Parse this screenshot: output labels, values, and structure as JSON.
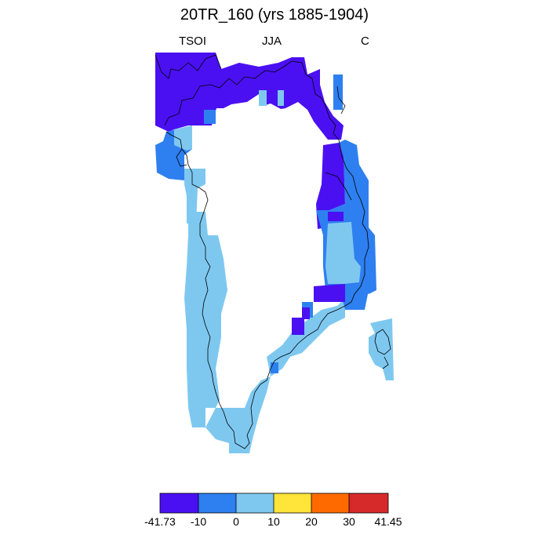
{
  "title": "20TR_160 (yrs 1885-1904)",
  "left_label": "TSOI",
  "center_label": "JJA",
  "right_label": "C",
  "colorbar": {
    "colors": [
      "#4a10f2",
      "#2e7ff0",
      "#7ec8f0",
      "#ffe43a",
      "#ff6a00",
      "#d62a2a"
    ],
    "tick_labels": [
      "-41.73",
      "-10",
      "0",
      "10",
      "20",
      "30",
      "41.45"
    ]
  }
}
